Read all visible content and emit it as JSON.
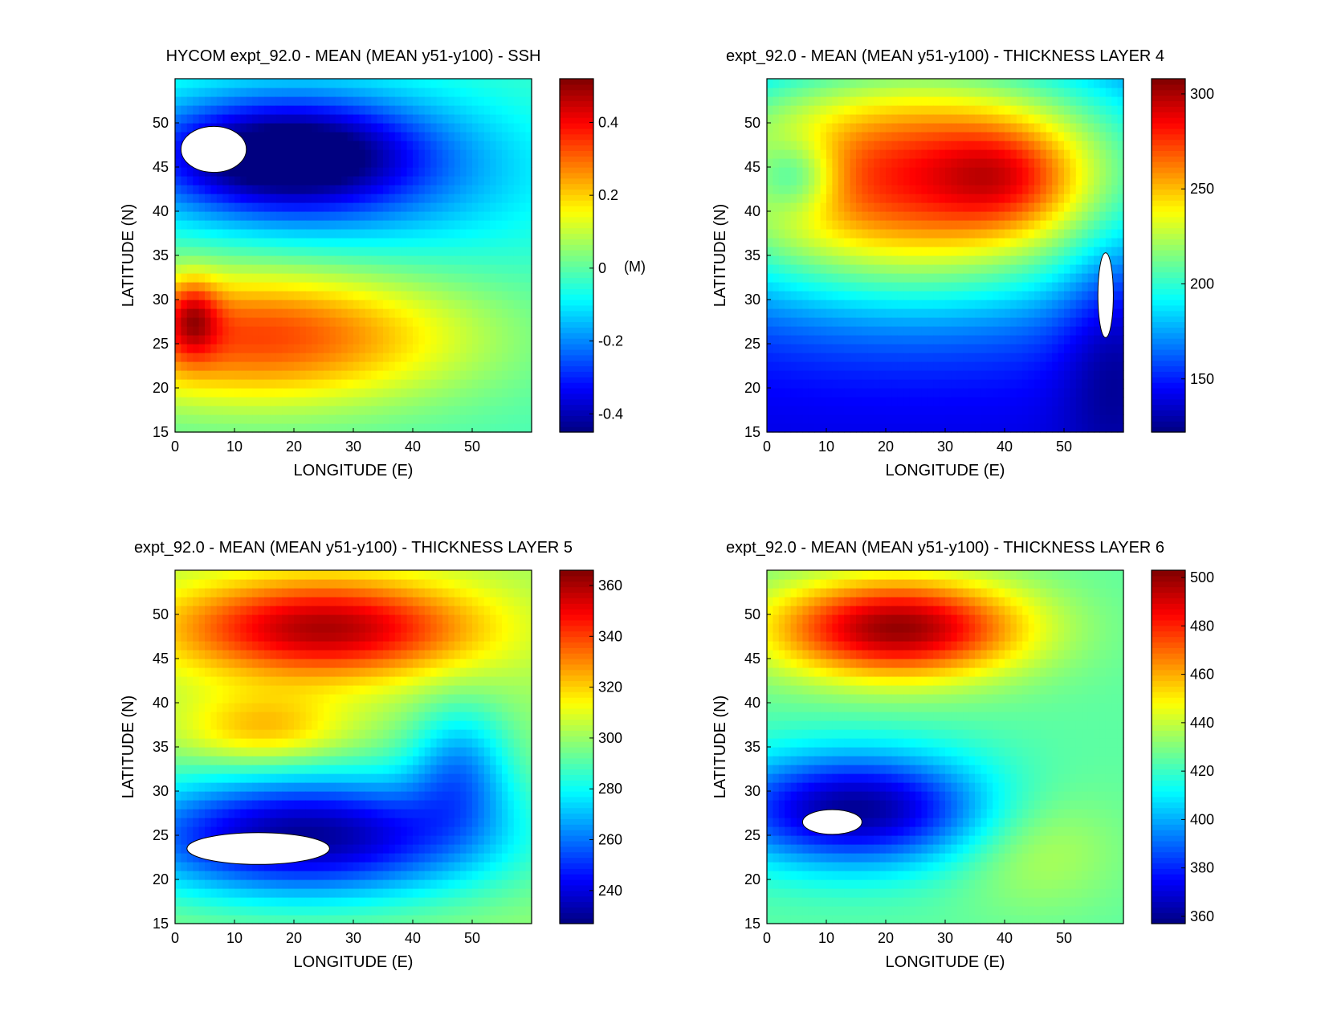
{
  "colormap": "jet",
  "chart_data": [
    {
      "type": "heatmap",
      "title": "HYCOM expt_92.0 - MEAN (MEAN y51-y100) - SSH",
      "xlabel": "LONGITUDE (E)",
      "ylabel": "LATITUDE (N)",
      "xlim": [
        0,
        60
      ],
      "ylim": [
        15,
        55
      ],
      "xticks": [
        0,
        10,
        20,
        30,
        40,
        50
      ],
      "yticks": [
        15,
        20,
        25,
        30,
        35,
        40,
        45,
        50
      ],
      "colorbar": {
        "min": -0.45,
        "max": 0.52,
        "ticks": [
          0.4,
          0.2,
          0,
          -0.2,
          -0.4
        ],
        "unit": "(M)"
      },
      "field": {
        "background": -0.02,
        "features": [
          {
            "kind": "low",
            "value": -0.42,
            "lon": 18,
            "lat": 46.5,
            "sx": 16,
            "sy": 4.5
          },
          {
            "kind": "low",
            "value": -0.15,
            "lon": 30,
            "lat": 44,
            "sx": 25,
            "sy": 7
          },
          {
            "kind": "high",
            "value": 0.36,
            "lon": 14,
            "lat": 26,
            "sx": 24,
            "sy": 5.5
          },
          {
            "kind": "high",
            "value": 0.22,
            "lon": 3,
            "lat": 28,
            "sx": 3,
            "sy": 3
          }
        ],
        "mask": [
          {
            "lon": 6.5,
            "lat": 47,
            "rx": 5.5,
            "ry": 2.6
          }
        ]
      }
    },
    {
      "type": "heatmap",
      "title": "expt_92.0 - MEAN (MEAN y51-y100) - THICKNESS LAYER 4",
      "xlabel": "LONGITUDE (E)",
      "ylabel": "LATITUDE (N)",
      "xlim": [
        0,
        60
      ],
      "ylim": [
        15,
        55
      ],
      "xticks": [
        0,
        10,
        20,
        30,
        40,
        50
      ],
      "yticks": [
        15,
        20,
        25,
        30,
        35,
        40,
        45,
        50
      ],
      "colorbar": {
        "min": 122,
        "max": 308,
        "ticks": [
          300,
          250,
          200,
          150
        ],
        "unit": ""
      },
      "field": {
        "background": 140,
        "features": [
          {
            "kind": "high",
            "value": 140,
            "lon": 25,
            "lat": 44,
            "sx": 30,
            "sy": 10
          },
          {
            "kind": "high",
            "value": 30,
            "lon": 40,
            "lat": 44,
            "sx": 8,
            "sy": 4
          },
          {
            "kind": "low",
            "value": -40,
            "lon": 5,
            "lat": 44,
            "sx": 5,
            "sy": 3
          },
          {
            "kind": "low",
            "value": -20,
            "lon": 58,
            "lat": 25,
            "sx": 6,
            "sy": 10
          }
        ],
        "mask": [
          {
            "lon": 57,
            "lat": 30.5,
            "rx": 1.3,
            "ry": 4.8
          }
        ]
      }
    },
    {
      "type": "heatmap",
      "title": "expt_92.0 - MEAN (MEAN y51-y100) - THICKNESS LAYER 5",
      "xlabel": "LONGITUDE (E)",
      "ylabel": "LATITUDE (N)",
      "xlim": [
        0,
        60
      ],
      "ylim": [
        15,
        55
      ],
      "xticks": [
        0,
        10,
        20,
        30,
        40,
        50
      ],
      "yticks": [
        15,
        20,
        25,
        30,
        35,
        40,
        45,
        50
      ],
      "colorbar": {
        "min": 227,
        "max": 366,
        "ticks": [
          360,
          340,
          320,
          300,
          280,
          260,
          240
        ],
        "unit": ""
      },
      "field": {
        "background": 300,
        "features": [
          {
            "kind": "high",
            "value": 60,
            "lon": 25,
            "lat": 48.5,
            "sx": 18,
            "sy": 4
          },
          {
            "kind": "high",
            "value": 25,
            "lon": 15,
            "lat": 37,
            "sx": 10,
            "sy": 3
          },
          {
            "kind": "low",
            "value": -70,
            "lon": 22,
            "lat": 25,
            "sx": 22,
            "sy": 5
          },
          {
            "kind": "low",
            "value": -30,
            "lon": 48,
            "lat": 33,
            "sx": 6,
            "sy": 5
          }
        ],
        "mask": [
          {
            "lon": 14,
            "lat": 23.5,
            "rx": 12,
            "ry": 1.8
          }
        ]
      }
    },
    {
      "type": "heatmap",
      "title": "expt_92.0 - MEAN (MEAN y51-y100) - THICKNESS LAYER 6",
      "xlabel": "LONGITUDE (E)",
      "ylabel": "LATITUDE (N)",
      "xlim": [
        0,
        60
      ],
      "ylim": [
        15,
        55
      ],
      "xticks": [
        0,
        10,
        20,
        30,
        40,
        50
      ],
      "yticks": [
        15,
        20,
        25,
        30,
        35,
        40,
        45,
        50
      ],
      "colorbar": {
        "min": 357,
        "max": 503,
        "ticks": [
          500,
          480,
          460,
          440,
          420,
          400,
          380,
          360
        ],
        "unit": ""
      },
      "field": {
        "background": 425,
        "features": [
          {
            "kind": "high",
            "value": 75,
            "lon": 22,
            "lat": 48.5,
            "sx": 15,
            "sy": 4
          },
          {
            "kind": "low",
            "value": -65,
            "lon": 15,
            "lat": 28,
            "sx": 16,
            "sy": 4.5
          },
          {
            "kind": "high",
            "value": 15,
            "lon": 45,
            "lat": 24,
            "sx": 10,
            "sy": 5
          }
        ],
        "mask": [
          {
            "lon": 11,
            "lat": 26.5,
            "rx": 5,
            "ry": 1.4
          }
        ]
      }
    }
  ]
}
